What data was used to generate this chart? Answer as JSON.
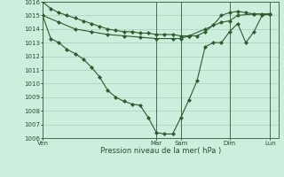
{
  "background_color": "#cceedd",
  "grid_color": "#aaccbb",
  "line_color": "#2d5a2d",
  "xlabel": "Pression niveau de la mer( hPa )",
  "ylim": [
    1006,
    1016
  ],
  "yticks": [
    1006,
    1007,
    1008,
    1009,
    1010,
    1011,
    1012,
    1013,
    1014,
    1015,
    1016
  ],
  "xtick_labels": [
    "Ven",
    "Mar",
    "Sam",
    "Dim",
    "Lun"
  ],
  "xtick_positions": [
    0,
    14,
    17,
    23,
    28
  ],
  "xlim": [
    0,
    29
  ],
  "vline_positions": [
    0,
    14,
    17,
    23,
    28
  ],
  "series1_x": [
    0,
    1,
    2,
    3,
    4,
    5,
    6,
    7,
    8,
    9,
    10,
    11,
    12,
    13,
    14,
    15,
    16,
    17,
    18,
    19,
    20,
    21,
    22,
    23,
    24,
    25,
    26,
    27,
    28
  ],
  "series1_y": [
    1016.0,
    1015.5,
    1015.2,
    1015.0,
    1014.8,
    1014.6,
    1014.4,
    1014.2,
    1014.0,
    1013.9,
    1013.8,
    1013.8,
    1013.7,
    1013.7,
    1013.6,
    1013.6,
    1013.6,
    1013.5,
    1013.5,
    1013.5,
    1013.8,
    1014.3,
    1015.0,
    1015.2,
    1015.3,
    1015.2,
    1015.1,
    1015.1,
    1015.1
  ],
  "series2_x": [
    0,
    1,
    2,
    3,
    4,
    5,
    6,
    7,
    8,
    9,
    10,
    11,
    12,
    13,
    14,
    15,
    16,
    17,
    18,
    19,
    20,
    21,
    22,
    23,
    24,
    25,
    26,
    27,
    28
  ],
  "series2_y": [
    1015.0,
    1013.3,
    1013.0,
    1012.5,
    1012.2,
    1011.8,
    1011.2,
    1010.5,
    1009.5,
    1009.0,
    1008.7,
    1008.5,
    1008.4,
    1007.5,
    1006.4,
    1006.3,
    1006.3,
    1007.5,
    1008.8,
    1010.2,
    1012.7,
    1013.0,
    1013.0,
    1013.8,
    1014.4,
    1013.0,
    1013.8,
    1015.0,
    1015.1
  ],
  "series3_x": [
    0,
    2,
    4,
    6,
    8,
    10,
    12,
    14,
    16,
    17,
    18,
    20,
    22,
    23,
    24,
    26,
    28
  ],
  "series3_y": [
    1015.0,
    1014.5,
    1014.0,
    1013.8,
    1013.6,
    1013.5,
    1013.4,
    1013.3,
    1013.3,
    1013.3,
    1013.5,
    1014.0,
    1014.5,
    1014.6,
    1015.0,
    1015.1,
    1015.1
  ]
}
